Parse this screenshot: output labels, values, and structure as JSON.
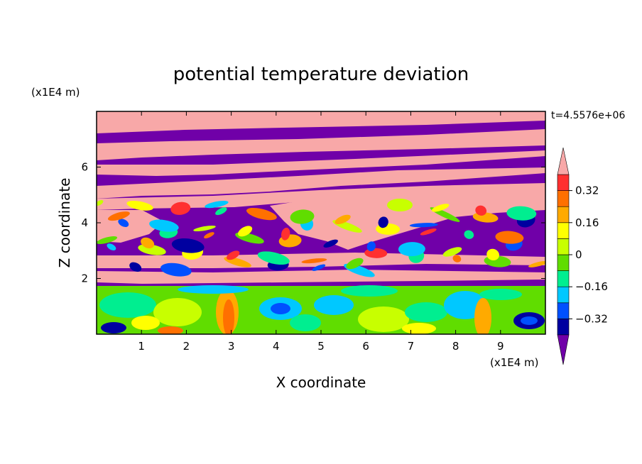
{
  "chart_data": {
    "type": "heatmap",
    "title": "potential temperature deviation",
    "xlabel": "X coordinate",
    "ylabel": "Z coordinate",
    "x_unit": "(x1E4 m)",
    "y_unit": "(x1E4 m)",
    "time_label": "t=4.5576e+06",
    "xlim": [
      0,
      10
    ],
    "ylim": [
      0,
      8
    ],
    "x_ticks": [
      1,
      2,
      3,
      4,
      5,
      6,
      7,
      8,
      9
    ],
    "y_ticks": [
      2,
      4,
      6
    ],
    "x_tick_labels": [
      "1",
      "2",
      "3",
      "4",
      "5",
      "6",
      "7",
      "8",
      "9"
    ],
    "y_tick_labels": [
      "2",
      "4",
      "6"
    ],
    "colorbar": {
      "levels": [
        -0.4,
        -0.32,
        -0.24,
        -0.16,
        -0.08,
        0,
        0.08,
        0.16,
        0.24,
        0.32,
        0.4
      ],
      "labeled_levels": [
        0.32,
        0.16,
        0,
        -0.16,
        -0.32
      ],
      "labels": [
        "0.32",
        "0.16",
        "0",
        "−0.16",
        "−0.32"
      ],
      "colors": [
        "#0000a0",
        "#0050ff",
        "#00c8ff",
        "#00ee90",
        "#60dd00",
        "#c8ff00",
        "#ffff00",
        "#ffaa00",
        "#ff7000",
        "#ff3030"
      ],
      "above_color": "#f8a8a8",
      "below_color": "#7000a8",
      "extend": "both"
    }
  }
}
